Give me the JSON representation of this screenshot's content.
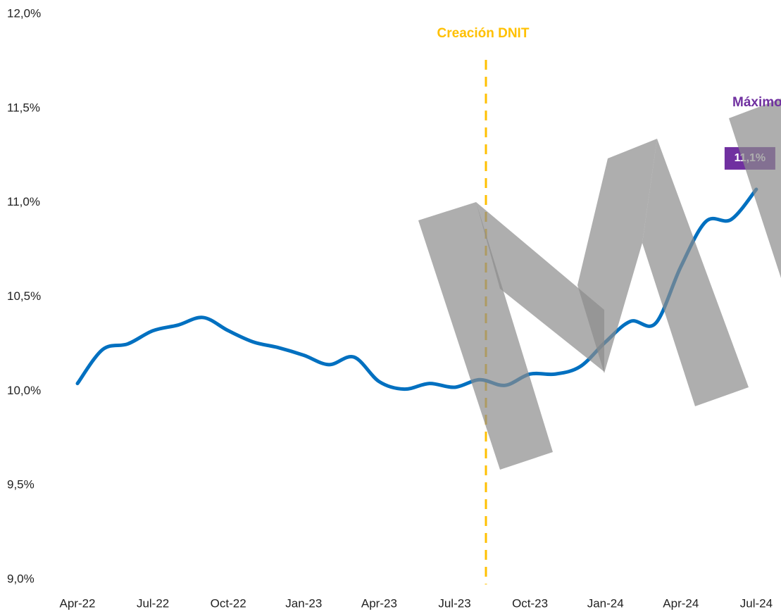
{
  "chart_data": {
    "type": "line",
    "categories": [
      "Apr-22",
      null,
      null,
      "Jul-22",
      null,
      null,
      "Oct-22",
      null,
      null,
      "Jan-23",
      null,
      null,
      "Apr-23",
      null,
      null,
      "Jul-23",
      null,
      null,
      "Oct-23",
      null,
      null,
      "Jan-24",
      null,
      null,
      "Apr-24",
      null,
      null,
      "Jul-24"
    ],
    "series": [
      {
        "color": "#0070c0",
        "values": [
          10.04,
          10.22,
          10.25,
          10.32,
          10.35,
          10.39,
          10.32,
          10.26,
          10.23,
          10.19,
          10.14,
          10.18,
          10.05,
          10.01,
          10.04,
          10.02,
          10.06,
          10.03,
          10.09,
          10.09,
          10.13,
          10.26,
          10.37,
          10.36,
          10.66,
          10.9,
          10.91,
          11.07
        ],
        "value_labels": [
          null,
          null,
          null,
          null,
          null,
          null,
          null,
          null,
          null,
          null,
          null,
          null,
          null,
          null,
          null,
          null,
          null,
          null,
          null,
          null,
          null,
          null,
          null,
          null,
          null,
          null,
          null,
          "11,1%"
        ]
      }
    ],
    "ylim": [
      9.0,
      12.0
    ],
    "yticks": [
      {
        "value": 9.0,
        "label": "9,0%"
      },
      {
        "value": 9.5,
        "label": "9,5%"
      },
      {
        "value": 10.0,
        "label": "10,0%"
      },
      {
        "value": 10.5,
        "label": "10,5%"
      },
      {
        "value": 11.0,
        "label": "11,0%"
      },
      {
        "value": 11.5,
        "label": "11,5%"
      },
      {
        "value": 12.0,
        "label": "12,0%"
      }
    ],
    "annotations": {
      "event": "Creación DNIT",
      "max_note": "Máximo histórico"
    }
  }
}
